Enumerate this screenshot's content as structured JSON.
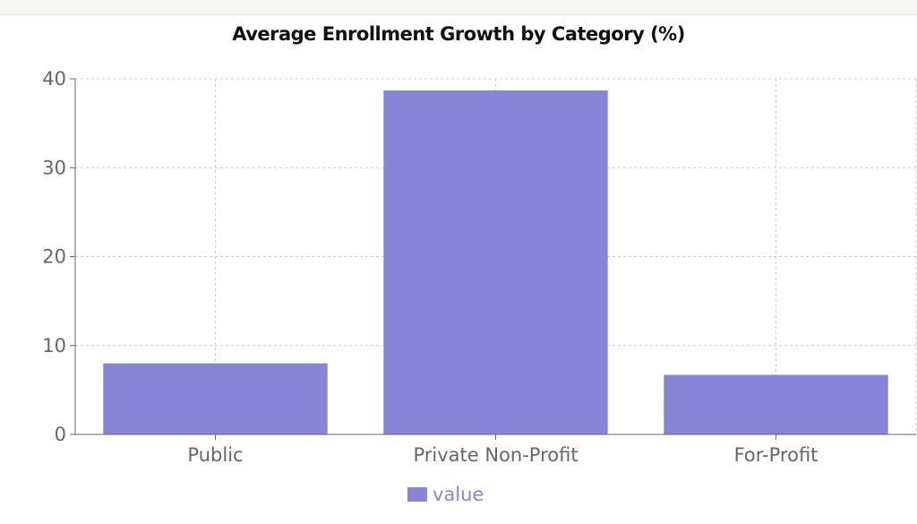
{
  "chart_data": {
    "type": "bar",
    "title": "Average Enrollment Growth by Category (%)",
    "categories": [
      "Public",
      "Private Non-Profit",
      "For-Profit"
    ],
    "series": [
      {
        "name": "value",
        "values": [
          8.0,
          38.7,
          6.7
        ],
        "color": "#8884d8"
      }
    ],
    "ylim": [
      0,
      40
    ],
    "yticks": [
      0,
      10,
      20,
      30,
      40
    ],
    "grid": true,
    "legend": "bottom"
  }
}
